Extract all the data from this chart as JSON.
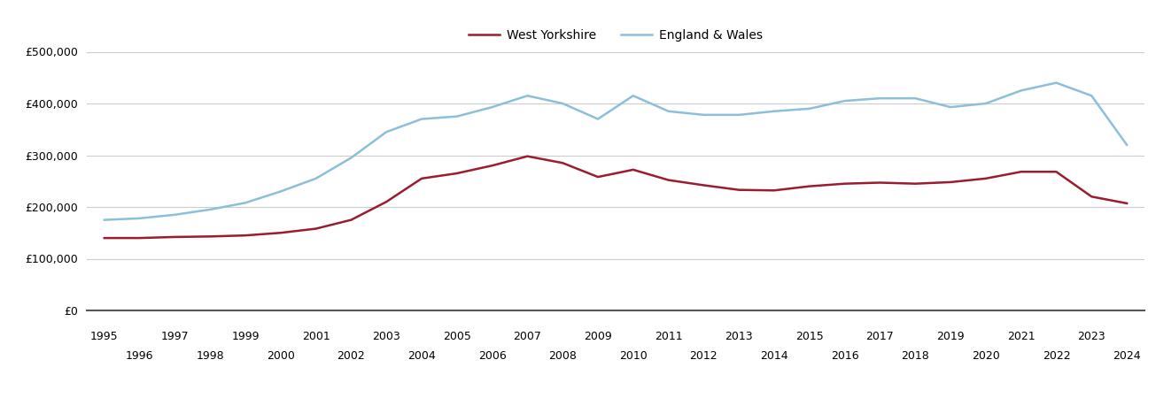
{
  "west_yorkshire": {
    "years": [
      1995,
      1996,
      1997,
      1998,
      1999,
      2000,
      2001,
      2002,
      2003,
      2004,
      2005,
      2006,
      2007,
      2008,
      2009,
      2010,
      2011,
      2012,
      2013,
      2014,
      2015,
      2016,
      2017,
      2018,
      2019,
      2020,
      2021,
      2022,
      2023,
      2024
    ],
    "values": [
      140000,
      140000,
      142000,
      143000,
      145000,
      150000,
      158000,
      175000,
      210000,
      255000,
      265000,
      280000,
      298000,
      285000,
      258000,
      272000,
      252000,
      242000,
      233000,
      232000,
      240000,
      245000,
      247000,
      245000,
      248000,
      255000,
      268000,
      268000,
      220000,
      207000
    ]
  },
  "england_wales": {
    "years": [
      1995,
      1996,
      1997,
      1998,
      1999,
      2000,
      2001,
      2002,
      2003,
      2004,
      2005,
      2006,
      2007,
      2008,
      2009,
      2010,
      2011,
      2012,
      2013,
      2014,
      2015,
      2016,
      2017,
      2018,
      2019,
      2020,
      2021,
      2022,
      2023,
      2024
    ],
    "values": [
      175000,
      178000,
      185000,
      195000,
      208000,
      230000,
      255000,
      295000,
      345000,
      370000,
      375000,
      393000,
      415000,
      400000,
      370000,
      415000,
      385000,
      378000,
      378000,
      385000,
      390000,
      405000,
      410000,
      410000,
      393000,
      400000,
      425000,
      440000,
      415000,
      320000
    ]
  },
  "wy_color": "#9B1C2E",
  "ew_color": "#8BBFDA",
  "wy_label": "West Yorkshire",
  "ew_label": "England & Wales",
  "ylim": [
    0,
    500000
  ],
  "yticks": [
    0,
    100000,
    200000,
    300000,
    400000,
    500000
  ],
  "ytick_labels": [
    "£0",
    "£100,000",
    "£200,000",
    "£300,000",
    "£400,000",
    "£500,000"
  ],
  "xlim": [
    1994.5,
    2024.5
  ],
  "odd_years": [
    1995,
    1997,
    1999,
    2001,
    2003,
    2005,
    2007,
    2009,
    2011,
    2013,
    2015,
    2017,
    2019,
    2021,
    2023
  ],
  "even_years": [
    1996,
    1998,
    2000,
    2002,
    2004,
    2006,
    2008,
    2010,
    2012,
    2014,
    2016,
    2018,
    2020,
    2022,
    2024
  ],
  "line_width": 1.8,
  "background_color": "#ffffff",
  "grid_color": "#cccccc",
  "legend_fontsize": 10,
  "tick_fontsize": 9
}
